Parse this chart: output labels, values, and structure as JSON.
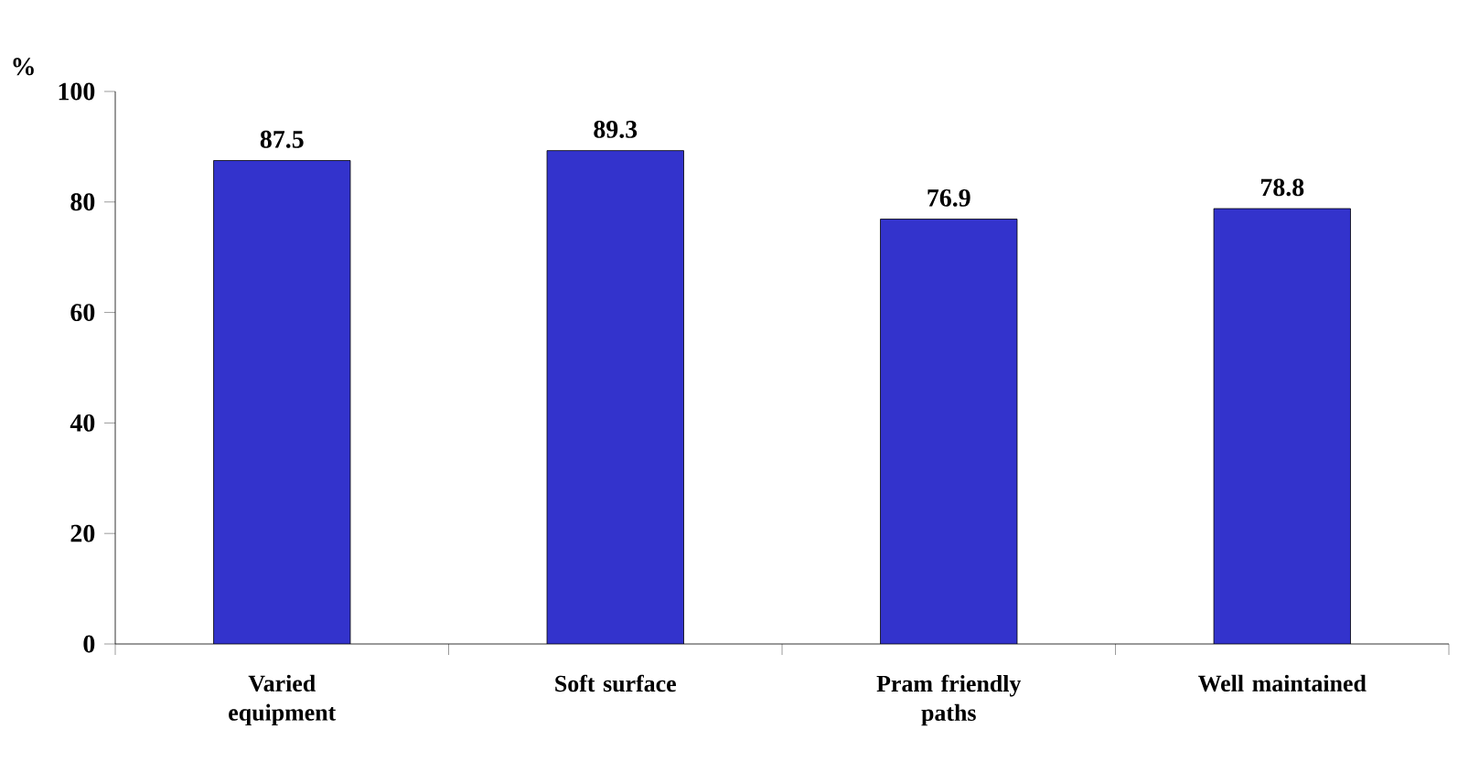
{
  "chart_data": {
    "type": "bar",
    "ylabel": "%",
    "categories": [
      "Varied equipment",
      "Soft surface",
      "Pram friendly paths",
      "Well maintained"
    ],
    "values": [
      87.5,
      89.3,
      76.9,
      78.8
    ],
    "color": "#3333cc",
    "ylim": [
      0,
      100
    ],
    "yticks": [
      0,
      20,
      40,
      60,
      80,
      100
    ],
    "data_labels": true
  }
}
